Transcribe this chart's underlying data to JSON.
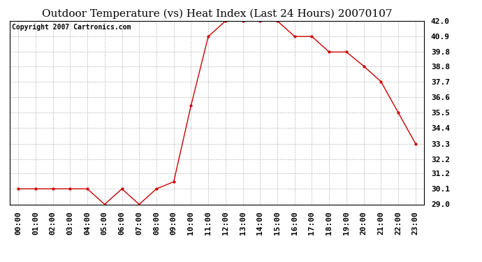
{
  "title": "Outdoor Temperature (vs) Heat Index (Last 24 Hours) 20070107",
  "copyright_text": "Copyright 2007 Cartronics.com",
  "x_labels": [
    "00:00",
    "01:00",
    "02:00",
    "03:00",
    "04:00",
    "05:00",
    "06:00",
    "07:00",
    "08:00",
    "09:00",
    "10:00",
    "11:00",
    "12:00",
    "13:00",
    "14:00",
    "15:00",
    "16:00",
    "17:00",
    "18:00",
    "19:00",
    "20:00",
    "21:00",
    "22:00",
    "23:00"
  ],
  "y_values": [
    30.1,
    30.1,
    30.1,
    30.1,
    30.1,
    29.0,
    30.1,
    29.0,
    30.1,
    30.6,
    36.0,
    40.9,
    42.0,
    42.0,
    42.0,
    42.0,
    40.9,
    40.9,
    39.8,
    39.8,
    38.8,
    37.7,
    35.5,
    33.3
  ],
  "line_color": "#cc0000",
  "marker": ".",
  "marker_color": "#cc0000",
  "marker_size": 4,
  "background_color": "#ffffff",
  "grid_color": "#bbbbbb",
  "ylim": [
    29.0,
    42.0
  ],
  "yticks": [
    29.0,
    30.1,
    31.2,
    32.2,
    33.3,
    34.4,
    35.5,
    36.6,
    37.7,
    38.8,
    39.8,
    40.9,
    42.0
  ],
  "title_fontsize": 11,
  "copyright_fontsize": 7,
  "tick_fontsize": 8
}
